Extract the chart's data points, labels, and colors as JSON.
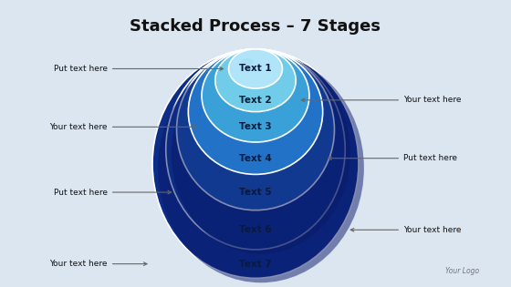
{
  "title": "Stacked Process – 7 Stages",
  "title_fontsize": 13,
  "background_color": "#dce6f0",
  "stages": [
    "Text 1",
    "Text 2",
    "Text 3",
    "Text 4",
    "Text 5",
    "Text 6",
    "Text 7"
  ],
  "left_labels": [
    "Put text here",
    "Your text here",
    "Put text here",
    "Your text here"
  ],
  "right_labels": [
    "Your text here",
    "Put text here",
    "Your text here"
  ],
  "logo": "Your Logo",
  "ellipse_colors": [
    "#0c2d87",
    "#1040a0",
    "#1a5ab8",
    "#2272c8",
    "#3aa0d8",
    "#70cce8",
    "#b0e4f8"
  ],
  "border_color": "#ffffff",
  "text_color": "#0a1a3a",
  "shadow_color": "#0a1a6a"
}
